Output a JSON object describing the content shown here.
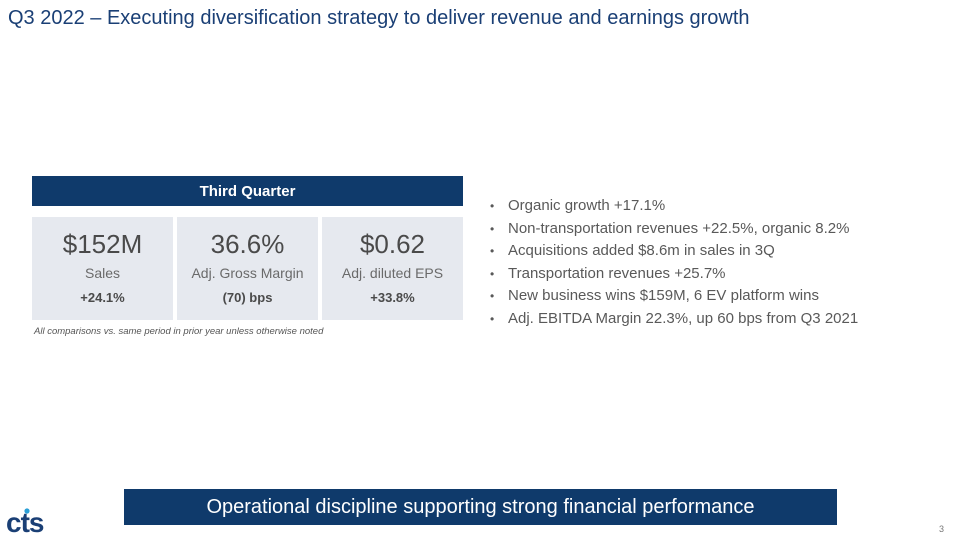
{
  "slide": {
    "title": "Q3 2022 – Executing diversification strategy to deliver revenue and earnings growth",
    "page_number": "3"
  },
  "quarter_table": {
    "header": "Third Quarter",
    "metrics": [
      {
        "value": "$152M",
        "label": "Sales",
        "change": "+24.1%"
      },
      {
        "value": "36.6%",
        "label": "Adj. Gross Margin",
        "change": "(70) bps"
      },
      {
        "value": "$0.62",
        "label": "Adj. diluted EPS",
        "change": "+33.8%"
      }
    ],
    "footnote": "All comparisons vs. same period in prior year unless otherwise noted"
  },
  "highlights": [
    "Organic growth +17.1%",
    "Non-transportation revenues +22.5%, organic 8.2%",
    "Acquisitions added $8.6m in sales in 3Q",
    "Transportation revenues +25.7%",
    "New business wins $159M, 6 EV platform wins",
    "Adj. EBITDA Margin 22.3%, up 60 bps from Q3 2021"
  ],
  "banner": {
    "text": "Operational discipline supporting strong financial performance"
  },
  "logo": {
    "text": "cts",
    "colors": {
      "letters": "#1a3f75",
      "accent": "#2a9fd6"
    }
  },
  "colors": {
    "brand_navy": "#0f3a6b",
    "title": "#1a3f75",
    "card_background": "#e6e9ef"
  }
}
